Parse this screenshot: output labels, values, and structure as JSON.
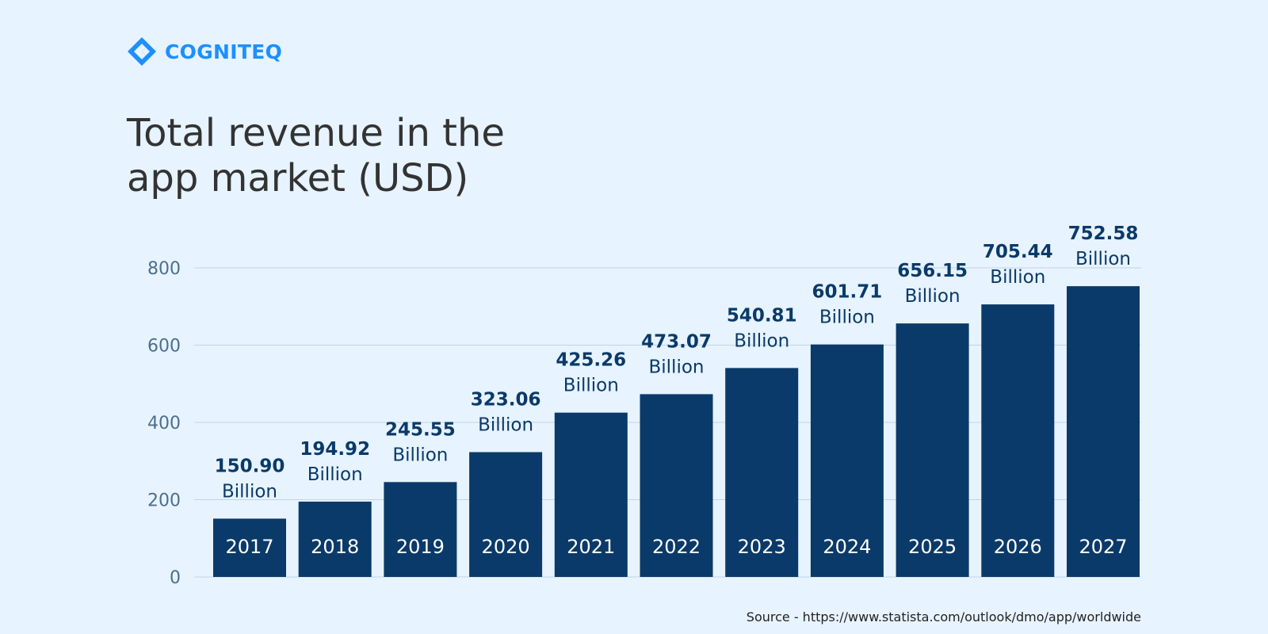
{
  "brand": {
    "name": "COGNITEQ",
    "color": "#1e8fff"
  },
  "title": {
    "line1": "Total revenue in the",
    "line2": "app market (USD)"
  },
  "source": "Source - https://www.statista.com/outlook/dmo/app/worldwide",
  "colors": {
    "bar": "#0a3a69",
    "bar_label_value": "#0a3a69",
    "bar_label_unit": "#0a3a69",
    "category_label": "#ffffff",
    "tick_label": "#4d6f8c",
    "grid": "#c2d4e3"
  },
  "chart_data": {
    "type": "bar",
    "title": "Total revenue in the app market (USD)",
    "xlabel": "",
    "ylabel": "",
    "ylim": [
      0,
      800
    ],
    "yticks": [
      0,
      200,
      400,
      600,
      800
    ],
    "grid": true,
    "categories": [
      "2017",
      "2018",
      "2019",
      "2020",
      "2021",
      "2022",
      "2023",
      "2024",
      "2025",
      "2026",
      "2027"
    ],
    "values": [
      150.9,
      194.92,
      245.55,
      323.06,
      425.26,
      473.07,
      540.81,
      601.71,
      656.15,
      705.44,
      752.58
    ],
    "value_labels": [
      "150.90",
      "194.92",
      "245.55",
      "323.06",
      "425.26",
      "473.07",
      "540.81",
      "601.71",
      "656.15",
      "705.44",
      "752.58"
    ],
    "unit_label": "Billion"
  }
}
